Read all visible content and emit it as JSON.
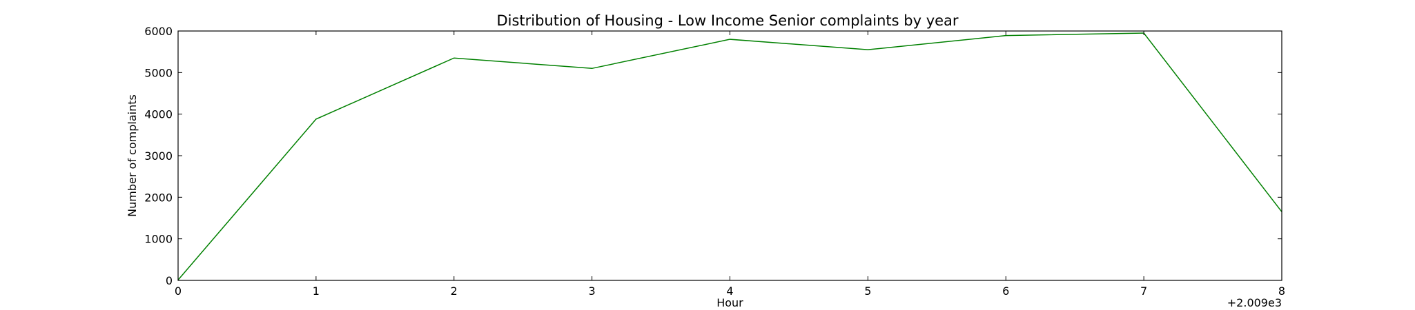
{
  "chart_data": {
    "type": "line",
    "title": "Distribution of  Housing - Low Income Senior complaints by year",
    "xlabel": "Hour",
    "ylabel": "Number of complaints",
    "x_offset_label": "+2.009e3",
    "xlim": [
      0,
      8
    ],
    "ylim": [
      0,
      6000
    ],
    "xticks": [
      0,
      1,
      2,
      3,
      4,
      5,
      6,
      7,
      8
    ],
    "yticks": [
      0,
      1000,
      2000,
      3000,
      4000,
      5000,
      6000
    ],
    "grid": false,
    "line_color": "#008000",
    "x": [
      0,
      1,
      2,
      3,
      4,
      5,
      6,
      7,
      8
    ],
    "series": [
      {
        "values": [
          10,
          3880,
          5350,
          5100,
          5800,
          5550,
          5890,
          5950,
          1650
        ]
      }
    ]
  }
}
